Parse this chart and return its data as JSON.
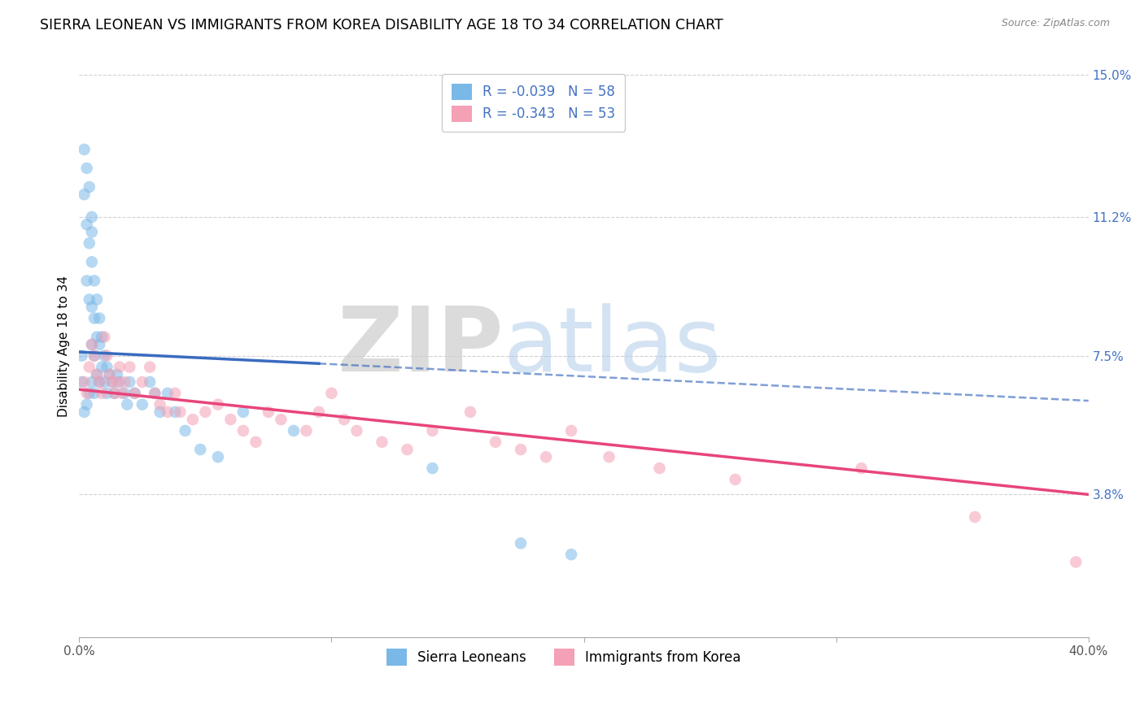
{
  "title": "SIERRA LEONEAN VS IMMIGRANTS FROM KOREA DISABILITY AGE 18 TO 34 CORRELATION CHART",
  "source": "Source: ZipAtlas.com",
  "ylabel": "Disability Age 18 to 34",
  "xlim": [
    0.0,
    0.4
  ],
  "ylim": [
    0.0,
    0.155
  ],
  "yticks": [
    0.038,
    0.075,
    0.112,
    0.15
  ],
  "ytick_labels": [
    "3.8%",
    "7.5%",
    "11.2%",
    "15.0%"
  ],
  "xticks": [
    0.0,
    0.1,
    0.2,
    0.3,
    0.4
  ],
  "xtick_labels": [
    "0.0%",
    "",
    "",
    "",
    "40.0%"
  ],
  "legend_entry1": "R = -0.039   N = 58",
  "legend_entry2": "R = -0.343   N = 53",
  "legend_label1": "Sierra Leoneans",
  "legend_label2": "Immigrants from Korea",
  "color_blue": "#7ab8e8",
  "color_pink": "#f4a0b5",
  "color_blue_line": "#3a6bbf",
  "color_pink_line": "#e8457a",
  "watermark_zip": "ZIP",
  "watermark_atlas": "atlas",
  "background_color": "#ffffff",
  "title_fontsize": 12.5,
  "axis_label_fontsize": 11,
  "tick_fontsize": 11,
  "scatter_alpha": 0.55,
  "scatter_size": 110,
  "blue_line_solid_end": 0.095,
  "blue_x": [
    0.001,
    0.001,
    0.002,
    0.002,
    0.002,
    0.003,
    0.003,
    0.003,
    0.003,
    0.004,
    0.004,
    0.004,
    0.004,
    0.005,
    0.005,
    0.005,
    0.005,
    0.005,
    0.005,
    0.006,
    0.006,
    0.006,
    0.006,
    0.007,
    0.007,
    0.007,
    0.008,
    0.008,
    0.008,
    0.009,
    0.009,
    0.01,
    0.01,
    0.011,
    0.011,
    0.012,
    0.013,
    0.014,
    0.015,
    0.016,
    0.018,
    0.019,
    0.02,
    0.022,
    0.025,
    0.028,
    0.03,
    0.032,
    0.035,
    0.038,
    0.042,
    0.048,
    0.055,
    0.065,
    0.085,
    0.14,
    0.175,
    0.195
  ],
  "blue_y": [
    0.075,
    0.068,
    0.13,
    0.118,
    0.06,
    0.125,
    0.11,
    0.095,
    0.062,
    0.12,
    0.105,
    0.09,
    0.065,
    0.112,
    0.108,
    0.1,
    0.088,
    0.078,
    0.068,
    0.095,
    0.085,
    0.075,
    0.065,
    0.09,
    0.08,
    0.07,
    0.085,
    0.078,
    0.068,
    0.08,
    0.072,
    0.075,
    0.068,
    0.072,
    0.065,
    0.07,
    0.068,
    0.065,
    0.07,
    0.068,
    0.065,
    0.062,
    0.068,
    0.065,
    0.062,
    0.068,
    0.065,
    0.06,
    0.065,
    0.06,
    0.055,
    0.05,
    0.048,
    0.06,
    0.055,
    0.045,
    0.025,
    0.022
  ],
  "pink_x": [
    0.002,
    0.003,
    0.004,
    0.005,
    0.006,
    0.007,
    0.008,
    0.009,
    0.01,
    0.011,
    0.012,
    0.013,
    0.014,
    0.015,
    0.016,
    0.017,
    0.018,
    0.02,
    0.022,
    0.025,
    0.028,
    0.03,
    0.032,
    0.035,
    0.038,
    0.04,
    0.045,
    0.05,
    0.055,
    0.06,
    0.065,
    0.07,
    0.075,
    0.08,
    0.09,
    0.095,
    0.1,
    0.105,
    0.11,
    0.12,
    0.13,
    0.14,
    0.155,
    0.165,
    0.175,
    0.185,
    0.195,
    0.21,
    0.23,
    0.26,
    0.31,
    0.355,
    0.395
  ],
  "pink_y": [
    0.068,
    0.065,
    0.072,
    0.078,
    0.075,
    0.07,
    0.068,
    0.065,
    0.08,
    0.075,
    0.07,
    0.068,
    0.065,
    0.068,
    0.072,
    0.065,
    0.068,
    0.072,
    0.065,
    0.068,
    0.072,
    0.065,
    0.062,
    0.06,
    0.065,
    0.06,
    0.058,
    0.06,
    0.062,
    0.058,
    0.055,
    0.052,
    0.06,
    0.058,
    0.055,
    0.06,
    0.065,
    0.058,
    0.055,
    0.052,
    0.05,
    0.055,
    0.06,
    0.052,
    0.05,
    0.048,
    0.055,
    0.048,
    0.045,
    0.042,
    0.045,
    0.032,
    0.02
  ]
}
